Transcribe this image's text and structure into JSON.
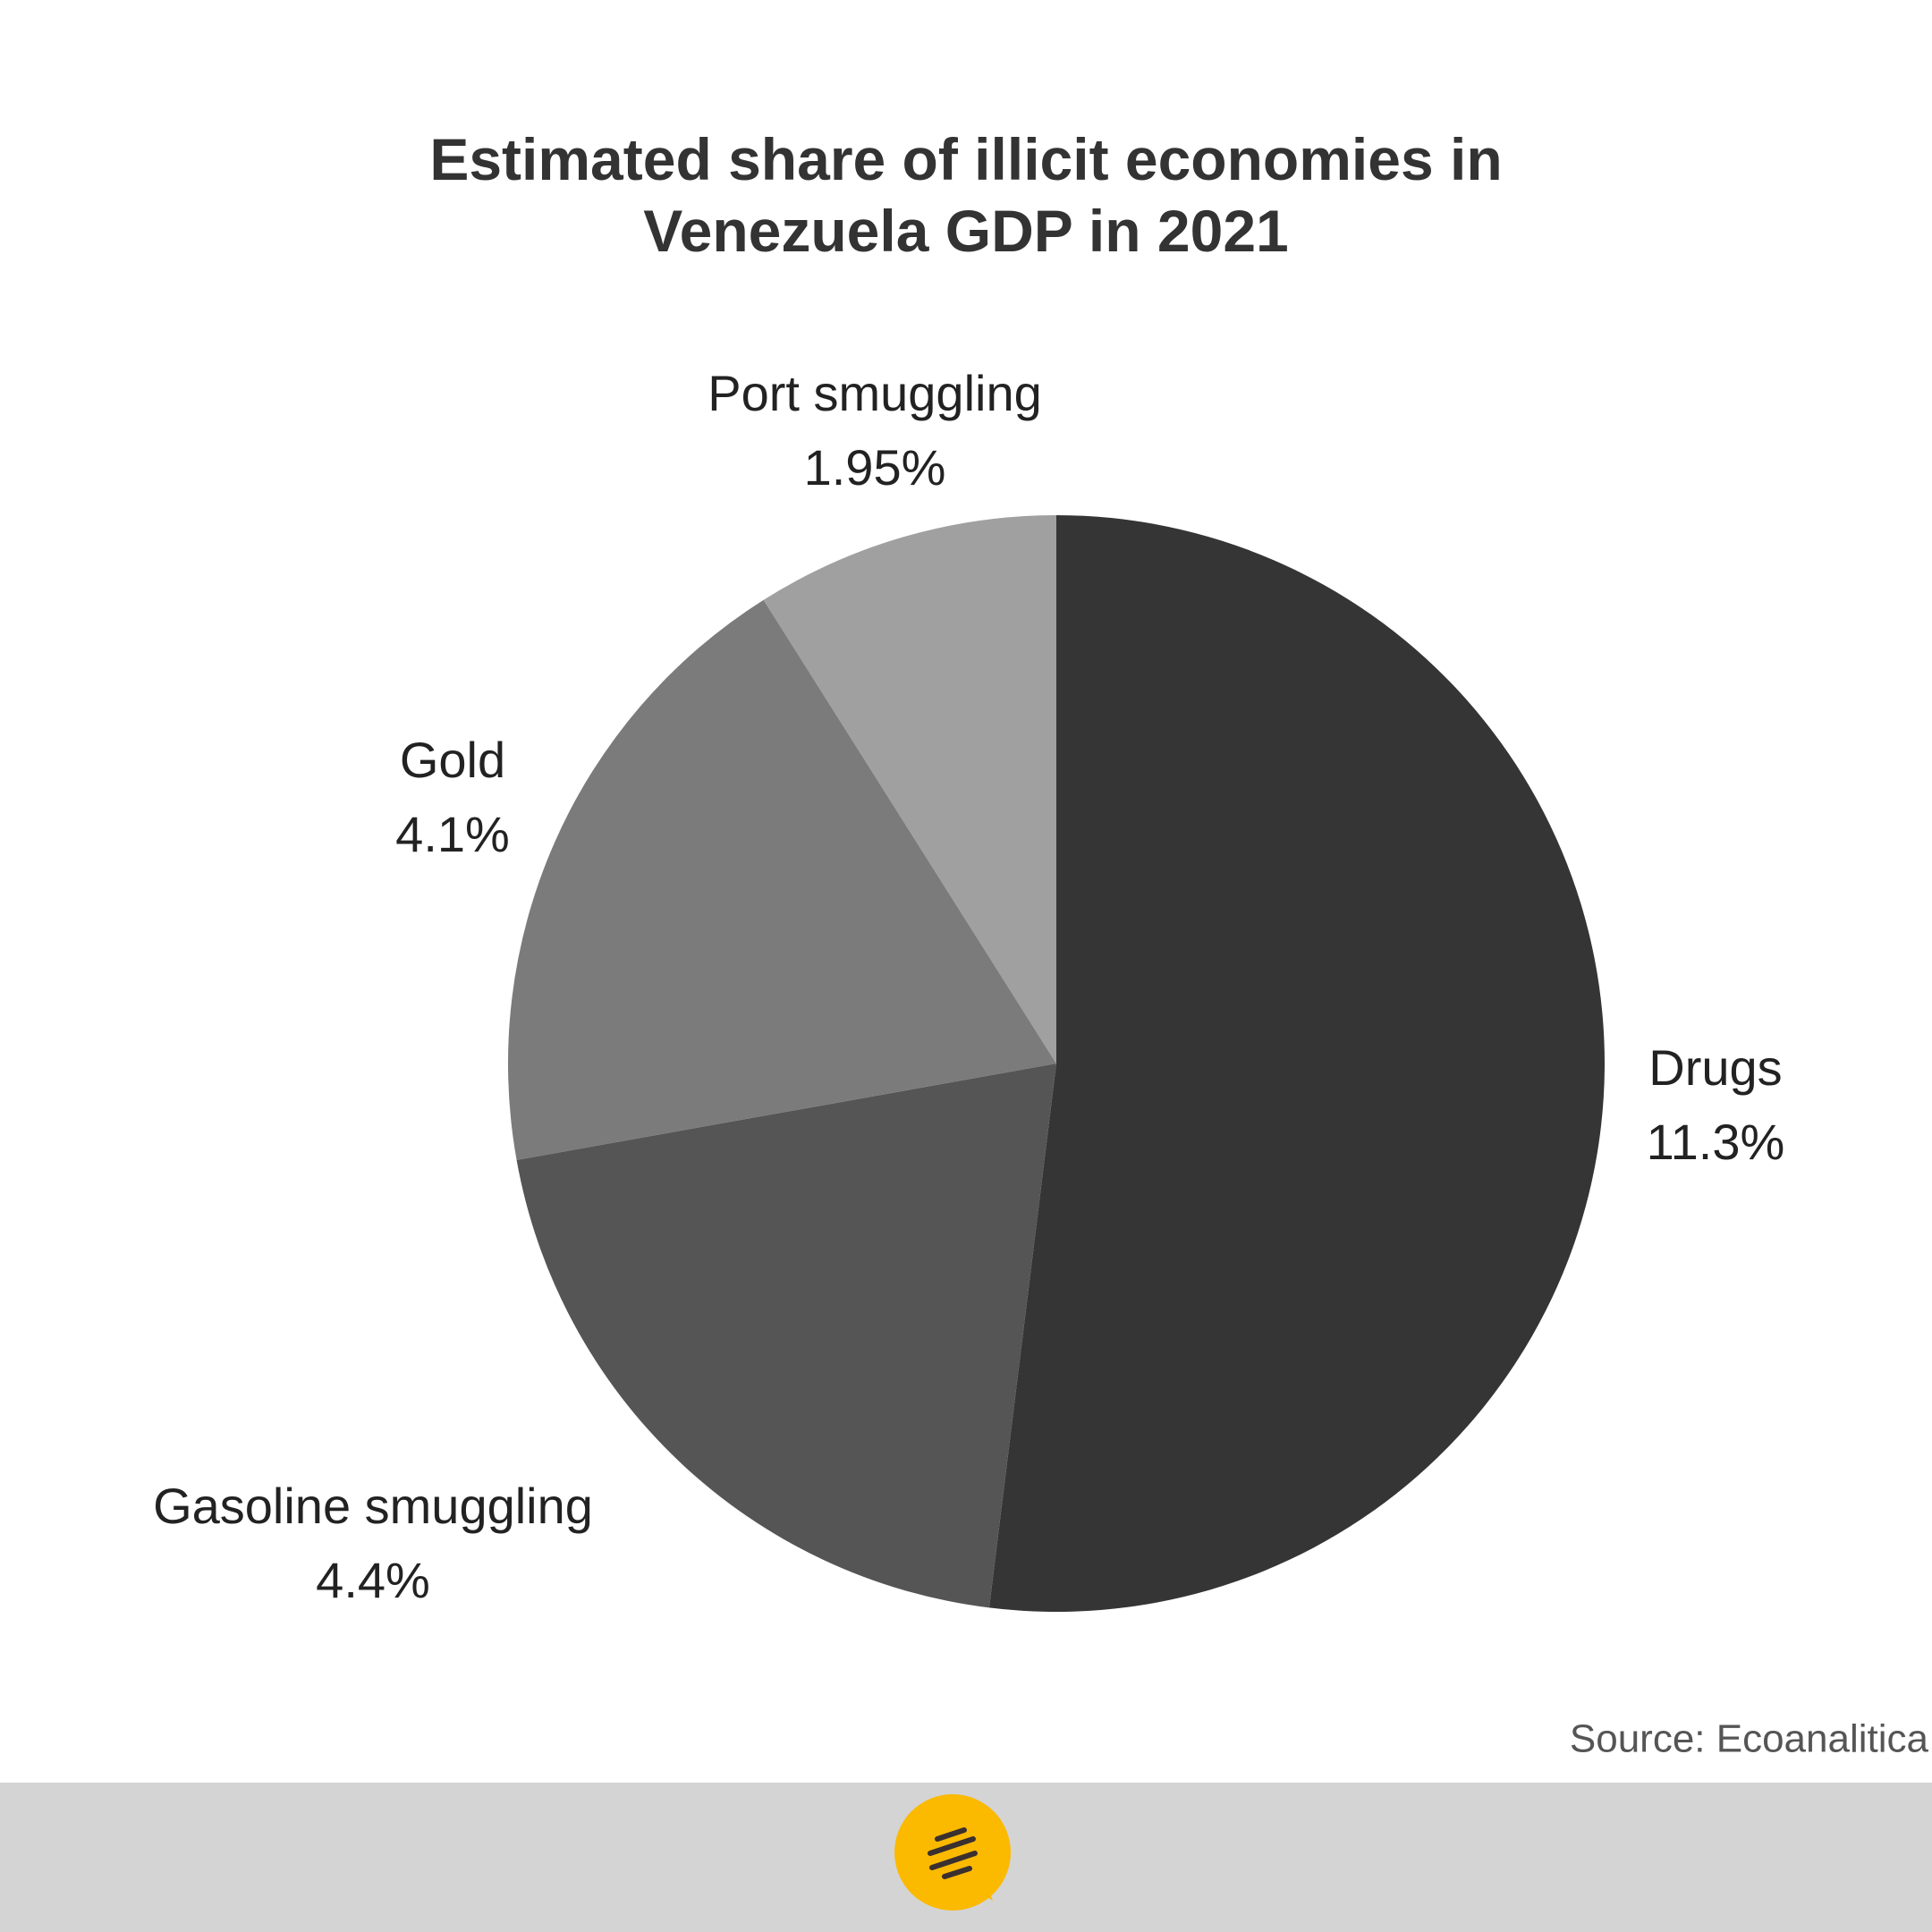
{
  "chart_data": {
    "type": "pie",
    "title": "Estimated share of illicit economies in Venezuela GDP in 2021",
    "categories": [
      "Drugs",
      "Gasoline smuggling",
      "Gold",
      "Port smuggling"
    ],
    "values": [
      11.3,
      4.4,
      4.1,
      1.95
    ],
    "value_labels": [
      "11.3%",
      "4.4%",
      "4.1%",
      "1.95%"
    ],
    "colors": [
      "#353535",
      "#555555",
      "#7b7b7b",
      "#a0a0a0"
    ],
    "source": "Source: Ecoanalitica"
  }
}
